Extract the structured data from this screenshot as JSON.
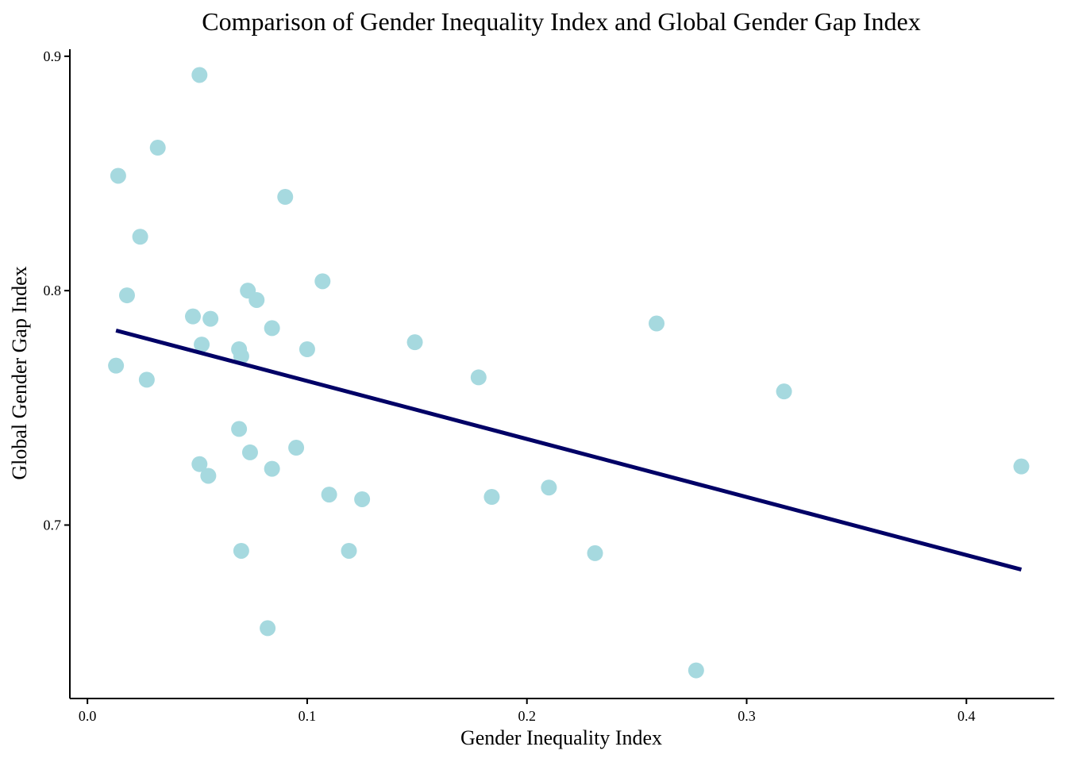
{
  "chart_data": {
    "type": "scatter",
    "title": "Comparison of Gender Inequality Index and Global Gender Gap Index",
    "xlabel": "Gender Inequality Index",
    "ylabel": "Global Gender Gap Index",
    "xlim": [
      -0.008,
      0.44
    ],
    "ylim": [
      0.626,
      0.903
    ],
    "x_ticks": [
      0.0,
      0.1,
      0.2,
      0.3,
      0.4
    ],
    "x_tick_labels": [
      "0.0",
      "0.1",
      "0.2",
      "0.3",
      "0.4"
    ],
    "y_ticks": [
      0.7,
      0.8,
      0.9
    ],
    "y_tick_labels": [
      "0.7",
      "0.8",
      "0.9"
    ],
    "grid": false,
    "point_color": "#a6d9df",
    "trend_color": "#000066",
    "points": [
      {
        "x": 0.051,
        "y": 0.892
      },
      {
        "x": 0.032,
        "y": 0.861
      },
      {
        "x": 0.014,
        "y": 0.849
      },
      {
        "x": 0.09,
        "y": 0.84
      },
      {
        "x": 0.024,
        "y": 0.823
      },
      {
        "x": 0.107,
        "y": 0.804
      },
      {
        "x": 0.073,
        "y": 0.8
      },
      {
        "x": 0.018,
        "y": 0.798
      },
      {
        "x": 0.077,
        "y": 0.796
      },
      {
        "x": 0.048,
        "y": 0.789
      },
      {
        "x": 0.056,
        "y": 0.788
      },
      {
        "x": 0.259,
        "y": 0.786
      },
      {
        "x": 0.084,
        "y": 0.784
      },
      {
        "x": 0.149,
        "y": 0.778
      },
      {
        "x": 0.052,
        "y": 0.777
      },
      {
        "x": 0.069,
        "y": 0.775
      },
      {
        "x": 0.1,
        "y": 0.775
      },
      {
        "x": 0.07,
        "y": 0.772
      },
      {
        "x": 0.013,
        "y": 0.768
      },
      {
        "x": 0.178,
        "y": 0.763
      },
      {
        "x": 0.027,
        "y": 0.762
      },
      {
        "x": 0.317,
        "y": 0.757
      },
      {
        "x": 0.069,
        "y": 0.741
      },
      {
        "x": 0.095,
        "y": 0.733
      },
      {
        "x": 0.074,
        "y": 0.731
      },
      {
        "x": 0.051,
        "y": 0.726
      },
      {
        "x": 0.425,
        "y": 0.725
      },
      {
        "x": 0.084,
        "y": 0.724
      },
      {
        "x": 0.055,
        "y": 0.721
      },
      {
        "x": 0.21,
        "y": 0.716
      },
      {
        "x": 0.11,
        "y": 0.713
      },
      {
        "x": 0.184,
        "y": 0.712
      },
      {
        "x": 0.125,
        "y": 0.711
      },
      {
        "x": 0.07,
        "y": 0.689
      },
      {
        "x": 0.119,
        "y": 0.689
      },
      {
        "x": 0.231,
        "y": 0.688
      },
      {
        "x": 0.082,
        "y": 0.656
      },
      {
        "x": 0.277,
        "y": 0.638
      }
    ],
    "trend_line": {
      "x": [
        0.013,
        0.425
      ],
      "y": [
        0.783,
        0.681
      ]
    }
  }
}
